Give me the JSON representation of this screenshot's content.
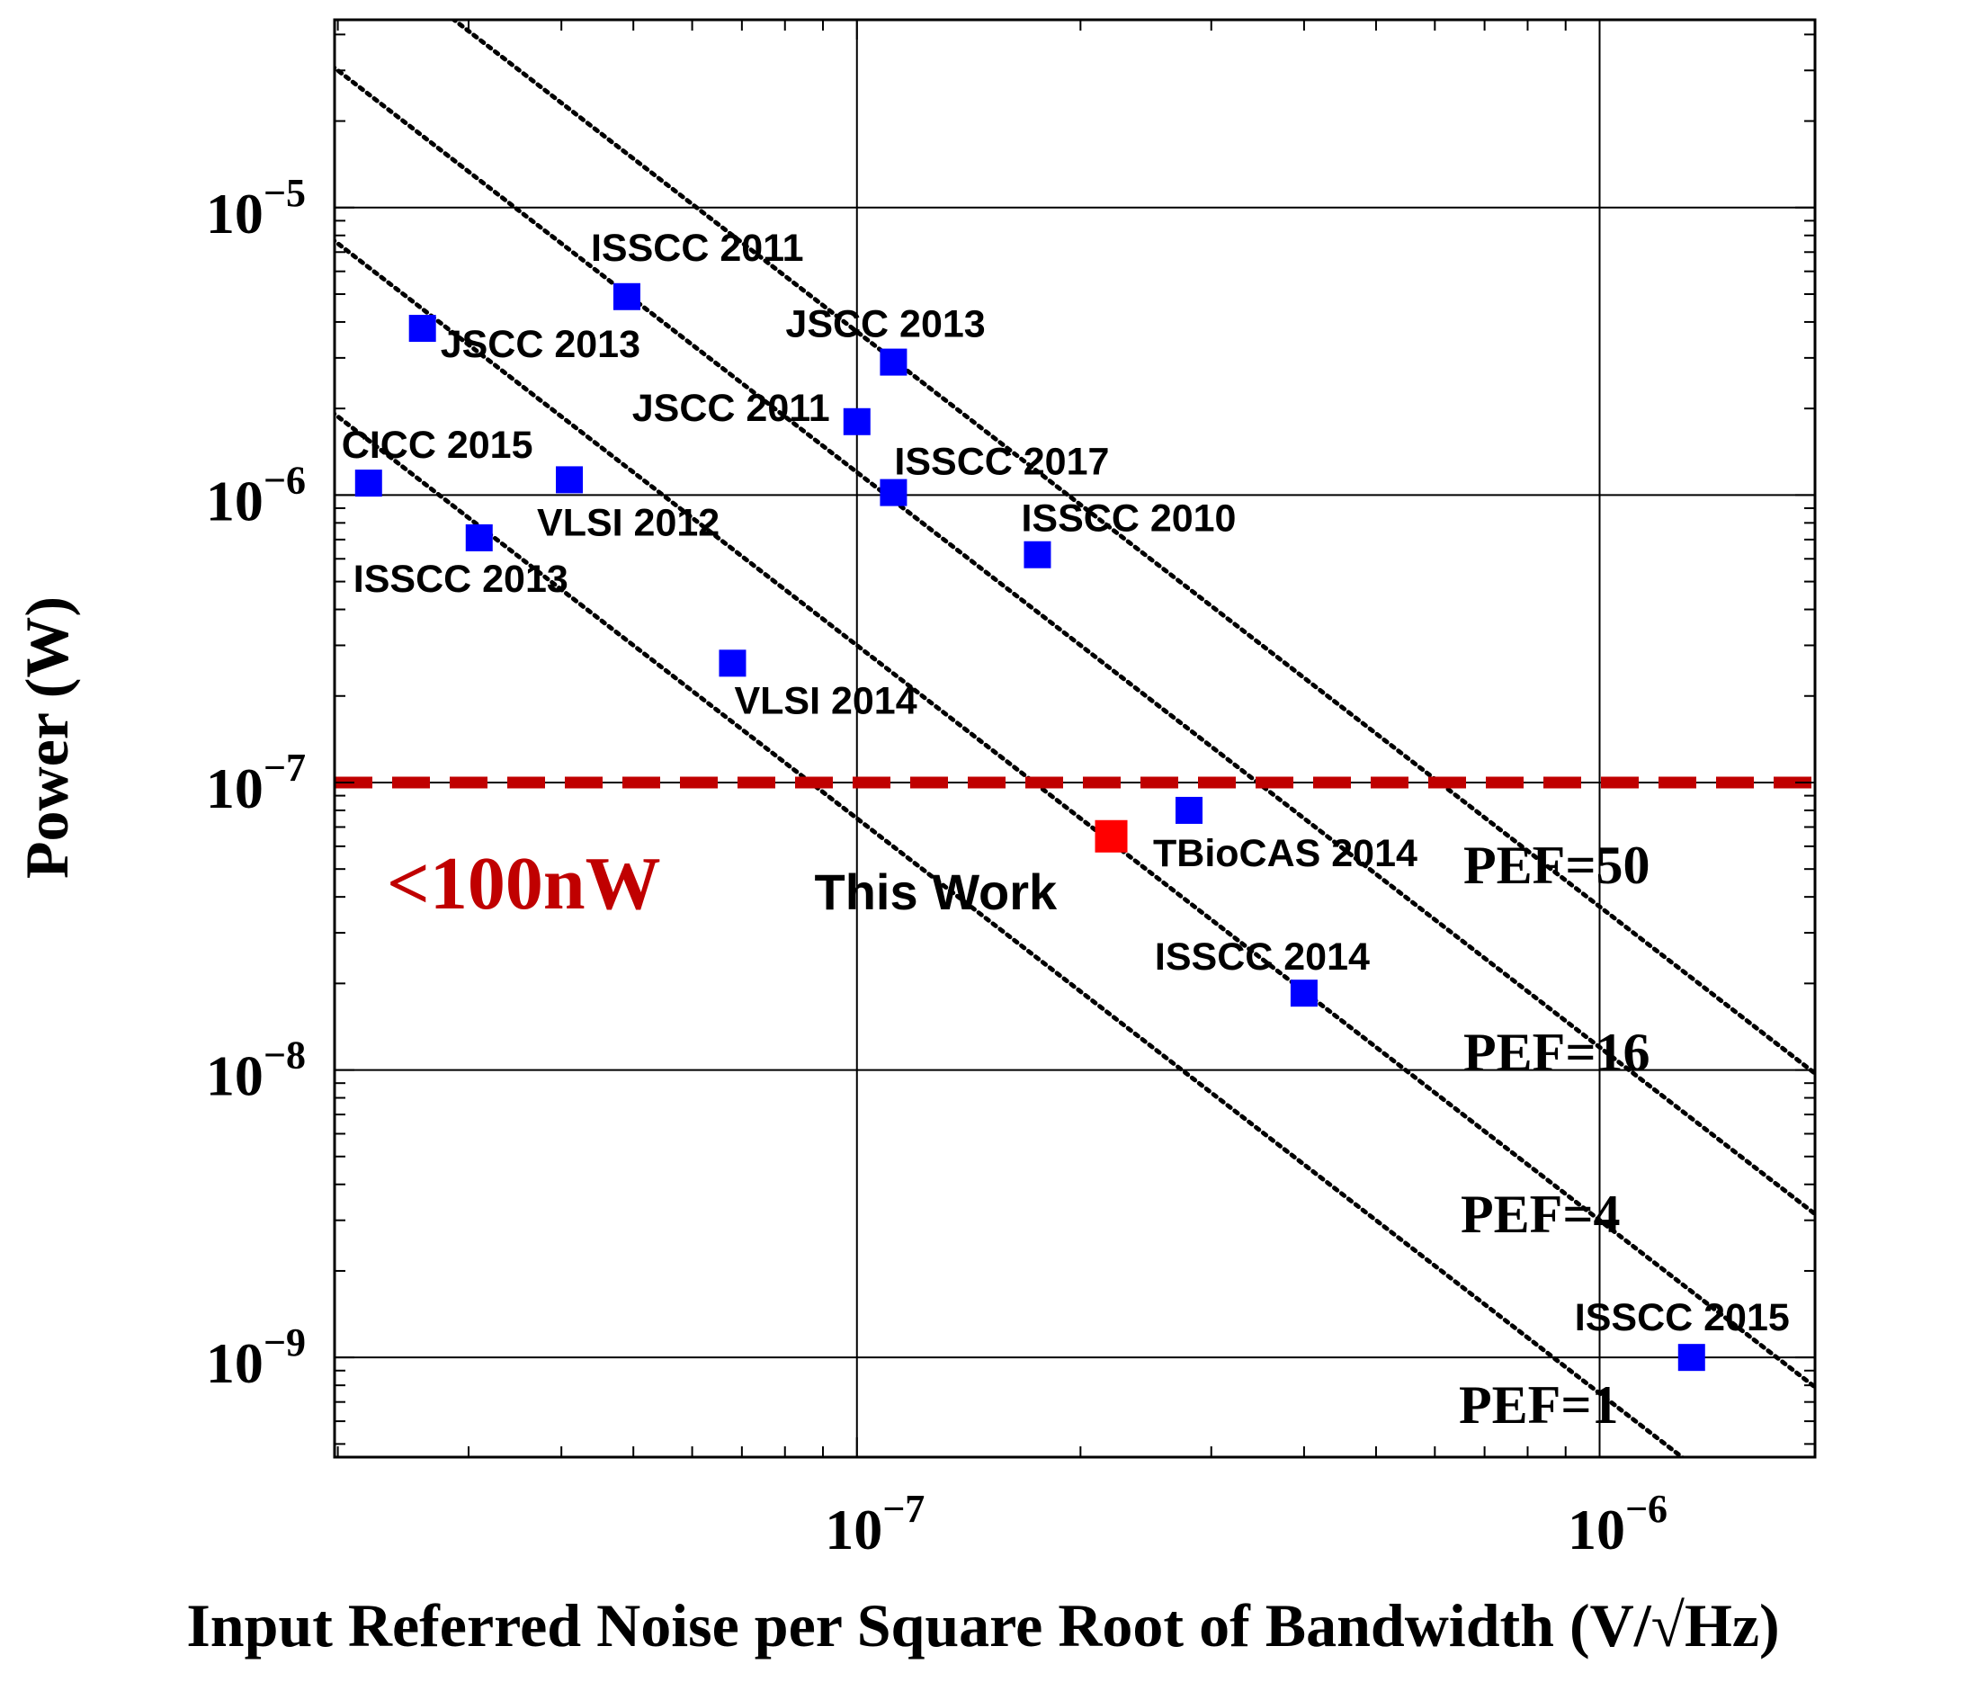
{
  "chart_data": {
    "type": "scatter",
    "xlabel": "Input Referred Noise per Square Root of Bandwidth (V/√Hz)",
    "ylabel": "Power (W)",
    "x_scale": "log",
    "y_scale": "log",
    "xlim": [
      1.98e-08,
      1.95e-06
    ],
    "ylim": [
      4.5e-10,
      4.5e-05
    ],
    "grid": true,
    "x_ticks": [
      {
        "value": 1e-07,
        "mantissa": "10",
        "exponent": "−7"
      },
      {
        "value": 1e-06,
        "mantissa": "10",
        "exponent": "−6"
      }
    ],
    "y_ticks": [
      {
        "value": 1e-05,
        "mantissa": "10",
        "exponent": "−5"
      },
      {
        "value": 1e-06,
        "mantissa": "10",
        "exponent": "−6"
      },
      {
        "value": 1e-07,
        "mantissa": "10",
        "exponent": "−7"
      },
      {
        "value": 1e-08,
        "mantissa": "10",
        "exponent": "−8"
      },
      {
        "value": 1e-09,
        "mantissa": "10",
        "exponent": "−9"
      }
    ],
    "series": [
      {
        "color": "#0000ff",
        "marker": "square",
        "points": [
          {
            "x": 2.2e-08,
            "y": 1.1e-06,
            "label": "CICC 2015"
          },
          {
            "x": 2.6e-08,
            "y": 3.8e-06,
            "label": "JSCC 2013"
          },
          {
            "x": 3.1e-08,
            "y": 7.1e-07,
            "label": "ISSCC 2013"
          },
          {
            "x": 4.1e-08,
            "y": 1.13e-06,
            "label": "VLSI 2012"
          },
          {
            "x": 4.9e-08,
            "y": 4.9e-06,
            "label": "ISSCC 2011"
          },
          {
            "x": 6.8e-08,
            "y": 2.6e-07,
            "label": "VLSI 2014"
          },
          {
            "x": 1e-07,
            "y": 1.8e-06,
            "label": "JSCC 2011"
          },
          {
            "x": 1.12e-07,
            "y": 2.9e-06,
            "label": "JSCC 2013"
          },
          {
            "x": 1.12e-07,
            "y": 1.02e-06,
            "label": "ISSCC 2017"
          },
          {
            "x": 1.75e-07,
            "y": 6.2e-07,
            "label": "ISSCC 2010"
          },
          {
            "x": 2.8e-07,
            "y": 8e-08,
            "label": "TBioCAS 2014"
          },
          {
            "x": 4e-07,
            "y": 1.85e-08,
            "label": "ISSCC 2014"
          },
          {
            "x": 1.33e-06,
            "y": 1e-09,
            "label": "ISSCC 2015"
          }
        ]
      },
      {
        "color": "#ff0000",
        "marker": "square",
        "points": [
          {
            "x": 2.2e-07,
            "y": 6.5e-08,
            "label": "This Work"
          }
        ]
      }
    ],
    "pef_lines": [
      {
        "label": "PEF=50",
        "ref_x": 1e-07,
        "ref_y": 3.7e-06
      },
      {
        "label": "PEF=16",
        "ref_x": 1e-07,
        "ref_y": 1.2e-06
      },
      {
        "label": "PEF=4",
        "ref_x": 1e-07,
        "ref_y": 3e-07
      },
      {
        "label": "PEF=1",
        "ref_x": 1e-07,
        "ref_y": 7.5e-08
      }
    ],
    "threshold": {
      "y": 1e-07,
      "color": "#c00000",
      "style": "dashed",
      "label": "<100nW"
    }
  }
}
